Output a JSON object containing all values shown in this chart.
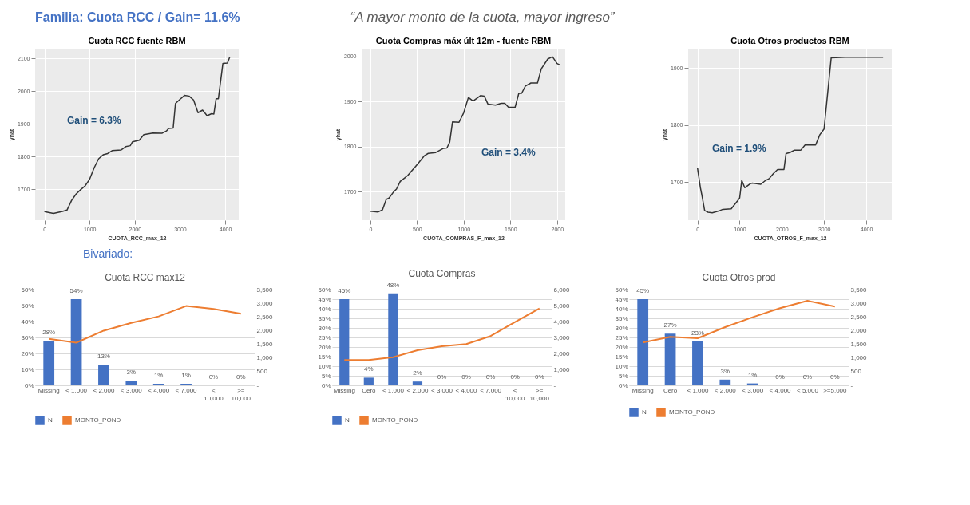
{
  "chart_data": [
    {
      "type": "other",
      "title": "Familia: Cuota RCC / Gain=  11.6%",
      "annotations": [
        "“A mayor monto de la cuota, mayor ingreso”"
      ]
    },
    {
      "type": "line",
      "title": "Cuota RCC fuente RBM",
      "xlabel": "CUOTA_RCC_max_12",
      "ylabel": "yhat",
      "xlim": [
        -205,
        4300
      ],
      "ylim": [
        1605,
        2130
      ],
      "xticks": [
        0,
        1000,
        2000,
        3000,
        4000
      ],
      "yticks": [
        1700,
        1800,
        1900,
        2000,
        2100
      ],
      "grid": true,
      "annotations": [
        "Gain =  6.3%"
      ],
      "series": [
        {
          "color": "#333333",
          "x": [
            0,
            200,
            400,
            500,
            600,
            700,
            800,
            900,
            1000,
            1100,
            1200,
            1300,
            1400,
            1500,
            1700,
            1800,
            1900,
            1950,
            2100,
            2200,
            2400,
            2600,
            2700,
            2750,
            2850,
            2900,
            3000,
            3100,
            3200,
            3300,
            3400,
            3500,
            3600,
            3700,
            3750,
            3800,
            3850,
            3950,
            4050,
            4100
          ],
          "values": [
            1631,
            1626,
            1632,
            1636,
            1665,
            1685,
            1698,
            1710,
            1730,
            1765,
            1793,
            1805,
            1809,
            1818,
            1820,
            1830,
            1833,
            1845,
            1850,
            1867,
            1872,
            1871,
            1878,
            1886,
            1887,
            1962,
            1975,
            1987,
            1985,
            1973,
            1934,
            1942,
            1925,
            1931,
            1930,
            1977,
            1977,
            2085,
            2086,
            2104
          ]
        }
      ]
    },
    {
      "type": "line",
      "title": "Cuota Compras máx últ 12m - fuente RBM",
      "xlabel": "CUOTA_COMPRAS_F_max_12",
      "ylabel": "yhat",
      "xlim": [
        -93,
        2087
      ],
      "ylim": [
        1637,
        2017
      ],
      "xticks": [
        0,
        500,
        1000,
        1500,
        2000
      ],
      "yticks": [
        1700,
        1800,
        1900,
        2000
      ],
      "grid": true,
      "annotations": [
        "Gain =  3.4%"
      ],
      "series": [
        {
          "color": "#333333",
          "x": [
            0,
            80,
            130,
            170,
            200,
            250,
            280,
            320,
            370,
            400,
            500,
            580,
            620,
            700,
            780,
            820,
            850,
            880,
            950,
            1000,
            1050,
            1100,
            1180,
            1220,
            1260,
            1340,
            1400,
            1440,
            1480,
            1550,
            1590,
            1620,
            1660,
            1720,
            1790,
            1830,
            1900,
            1950,
            2000,
            2030
          ],
          "values": [
            1657,
            1655,
            1660,
            1683,
            1686,
            1700,
            1706,
            1723,
            1731,
            1736,
            1760,
            1780,
            1785,
            1787,
            1796,
            1797,
            1810,
            1855,
            1854,
            1875,
            1909,
            1901,
            1913,
            1912,
            1894,
            1892,
            1896,
            1896,
            1887,
            1887,
            1918,
            1918,
            1934,
            1941,
            1941,
            1972,
            1994,
            1999,
            1984,
            1981
          ]
        }
      ]
    },
    {
      "type": "line",
      "title": "Cuota Otros productos RBM",
      "xlabel": "CUOTA_OTROS_F_max_12",
      "ylabel": "yhat",
      "xlim": [
        -220,
        4605
      ],
      "ylim": [
        1633,
        1934
      ],
      "xticks": [
        0,
        1000,
        2000,
        3000,
        4000
      ],
      "yticks": [
        1700,
        1800,
        1900
      ],
      "grid": true,
      "annotations": [
        "Gain =  1.9%"
      ],
      "series": [
        {
          "color": "#333333",
          "x": [
            0,
            70,
            110,
            170,
            250,
            350,
            500,
            600,
            800,
            950,
            1000,
            1050,
            1120,
            1250,
            1300,
            1500,
            1600,
            1700,
            1800,
            1900,
            2050,
            2100,
            2200,
            2300,
            2450,
            2550,
            2800,
            2900,
            3000,
            3170,
            3500,
            4400
          ],
          "values": [
            1725,
            1690,
            1675,
            1650,
            1647,
            1646,
            1649,
            1652,
            1653,
            1667,
            1672,
            1703,
            1690,
            1697,
            1698,
            1696,
            1702,
            1706,
            1715,
            1722,
            1722,
            1750,
            1752,
            1756,
            1756,
            1765,
            1765,
            1783,
            1793,
            1918,
            1919,
            1919
          ]
        }
      ]
    },
    {
      "type": "other",
      "annotations": [
        "Bivariado:"
      ]
    },
    {
      "type": "bar",
      "title": "Cuota RCC max12",
      "categories": [
        "Missing",
        "< 1,000",
        "< 2,000",
        "< 3,000",
        "< 4,000",
        "< 7,000",
        "< 10,000",
        ">= 10,000"
      ],
      "ylim": [
        0,
        60
      ],
      "yticks": [
        {
          "value": 0,
          "label": "0%"
        },
        {
          "value": 10,
          "label": "10%"
        },
        {
          "value": 20,
          "label": "20%"
        },
        {
          "value": 30,
          "label": "30%"
        },
        {
          "value": 40,
          "label": "40%"
        },
        {
          "value": 50,
          "label": "50%"
        },
        {
          "value": 60,
          "label": "60%"
        }
      ],
      "y2lim": [
        0,
        3500
      ],
      "y2ticks": [
        {
          "value": 0,
          "label": "-"
        },
        500,
        {
          "value": 1000,
          "label": "1,000"
        },
        {
          "value": 1500,
          "label": "1,500"
        },
        {
          "value": 2000,
          "label": "2,000"
        },
        {
          "value": 2500,
          "label": "2,500"
        },
        {
          "value": 3000,
          "label": "3,000"
        },
        {
          "value": 3500,
          "label": "3,500"
        }
      ],
      "grid": "y",
      "legend": "bottom",
      "series": [
        {
          "name": "N",
          "type": "bar",
          "color": "#4472c4",
          "values": [
            28,
            54,
            13,
            3,
            1,
            1,
            0,
            0
          ],
          "value_labels": [
            "28%",
            "54%",
            "13%",
            "3%",
            "1%",
            "1%",
            "0%",
            "0%"
          ]
        },
        {
          "name": "MONTO_POND",
          "type": "line",
          "axis": "y2",
          "color": "#ed7d31",
          "values": [
            1700,
            1560,
            2000,
            2280,
            2520,
            2900,
            2790,
            2620
          ]
        }
      ]
    },
    {
      "type": "bar",
      "title": "Cuota Compras",
      "categories": [
        "Missing",
        "Cero",
        "< 1,000",
        "< 2,000",
        "< 3,000",
        "< 4,000",
        "< 7,000",
        "< 10,000",
        ">= 10,000"
      ],
      "ylim": [
        0,
        50
      ],
      "yticks": [
        {
          "value": 0,
          "label": "0%"
        },
        {
          "value": 5,
          "label": "5%"
        },
        {
          "value": 10,
          "label": "10%"
        },
        {
          "value": 15,
          "label": "15%"
        },
        {
          "value": 20,
          "label": "20%"
        },
        {
          "value": 25,
          "label": "25%"
        },
        {
          "value": 30,
          "label": "30%"
        },
        {
          "value": 35,
          "label": "35%"
        },
        {
          "value": 40,
          "label": "40%"
        },
        {
          "value": 45,
          "label": "45%"
        },
        {
          "value": 50,
          "label": "50%"
        }
      ],
      "y2lim": [
        0,
        6000
      ],
      "y2ticks": [
        {
          "value": 0,
          "label": "-"
        },
        {
          "value": 1000,
          "label": "1,000"
        },
        {
          "value": 2000,
          "label": "2,000"
        },
        {
          "value": 3000,
          "label": "3,000"
        },
        {
          "value": 4000,
          "label": "4,000"
        },
        {
          "value": 5000,
          "label": "5,000"
        },
        {
          "value": 6000,
          "label": "6,000"
        }
      ],
      "grid": "y",
      "legend": "bottom",
      "series": [
        {
          "name": "N",
          "type": "bar",
          "color": "#4472c4",
          "values": [
            45,
            4,
            48,
            2,
            0,
            0,
            0,
            0,
            0
          ],
          "value_labels": [
            "45%",
            "4%",
            "48%",
            "2%",
            "0%",
            "0%",
            "0%",
            "0%",
            "0%"
          ]
        },
        {
          "name": "MONTO_POND",
          "type": "line",
          "axis": "y2",
          "color": "#ed7d31",
          "values": [
            1590,
            1590,
            1760,
            2200,
            2450,
            2590,
            3090,
            3970,
            4820
          ]
        }
      ]
    },
    {
      "type": "bar",
      "title": "Cuota Otros prod",
      "categories": [
        "Missing",
        "Cero",
        "< 1,000",
        "< 2,000",
        "< 3,000",
        "< 4,000",
        "< 5,000",
        ">=5,000"
      ],
      "ylim": [
        0,
        50
      ],
      "yticks": [
        {
          "value": 0,
          "label": "0%"
        },
        {
          "value": 5,
          "label": "5%"
        },
        {
          "value": 10,
          "label": "10%"
        },
        {
          "value": 15,
          "label": "15%"
        },
        {
          "value": 20,
          "label": "20%"
        },
        {
          "value": 25,
          "label": "25%"
        },
        {
          "value": 30,
          "label": "30%"
        },
        {
          "value": 35,
          "label": "35%"
        },
        {
          "value": 40,
          "label": "40%"
        },
        {
          "value": 45,
          "label": "45%"
        },
        {
          "value": 50,
          "label": "50%"
        }
      ],
      "y2lim": [
        0,
        3500
      ],
      "y2ticks": [
        {
          "value": 0,
          "label": "-"
        },
        500,
        {
          "value": 1000,
          "label": "1,000"
        },
        {
          "value": 1500,
          "label": "1,500"
        },
        {
          "value": 2000,
          "label": "2,000"
        },
        {
          "value": 2500,
          "label": "2,500"
        },
        {
          "value": 3000,
          "label": "3,000"
        },
        {
          "value": 3500,
          "label": "3,500"
        }
      ],
      "grid": "y",
      "legend": "bottom",
      "series": [
        {
          "name": "N",
          "type": "bar",
          "color": "#4472c4",
          "values": [
            45,
            27,
            23,
            3,
            1,
            0,
            0,
            0
          ],
          "value_labels": [
            "45%",
            "27%",
            "23%",
            "3%",
            "1%",
            "0%",
            "0%",
            "0%"
          ]
        },
        {
          "name": "MONTO_POND",
          "type": "line",
          "axis": "y2",
          "color": "#ed7d31",
          "values": [
            1570,
            1770,
            1720,
            2130,
            2490,
            2820,
            3090,
            2880
          ]
        }
      ]
    }
  ]
}
